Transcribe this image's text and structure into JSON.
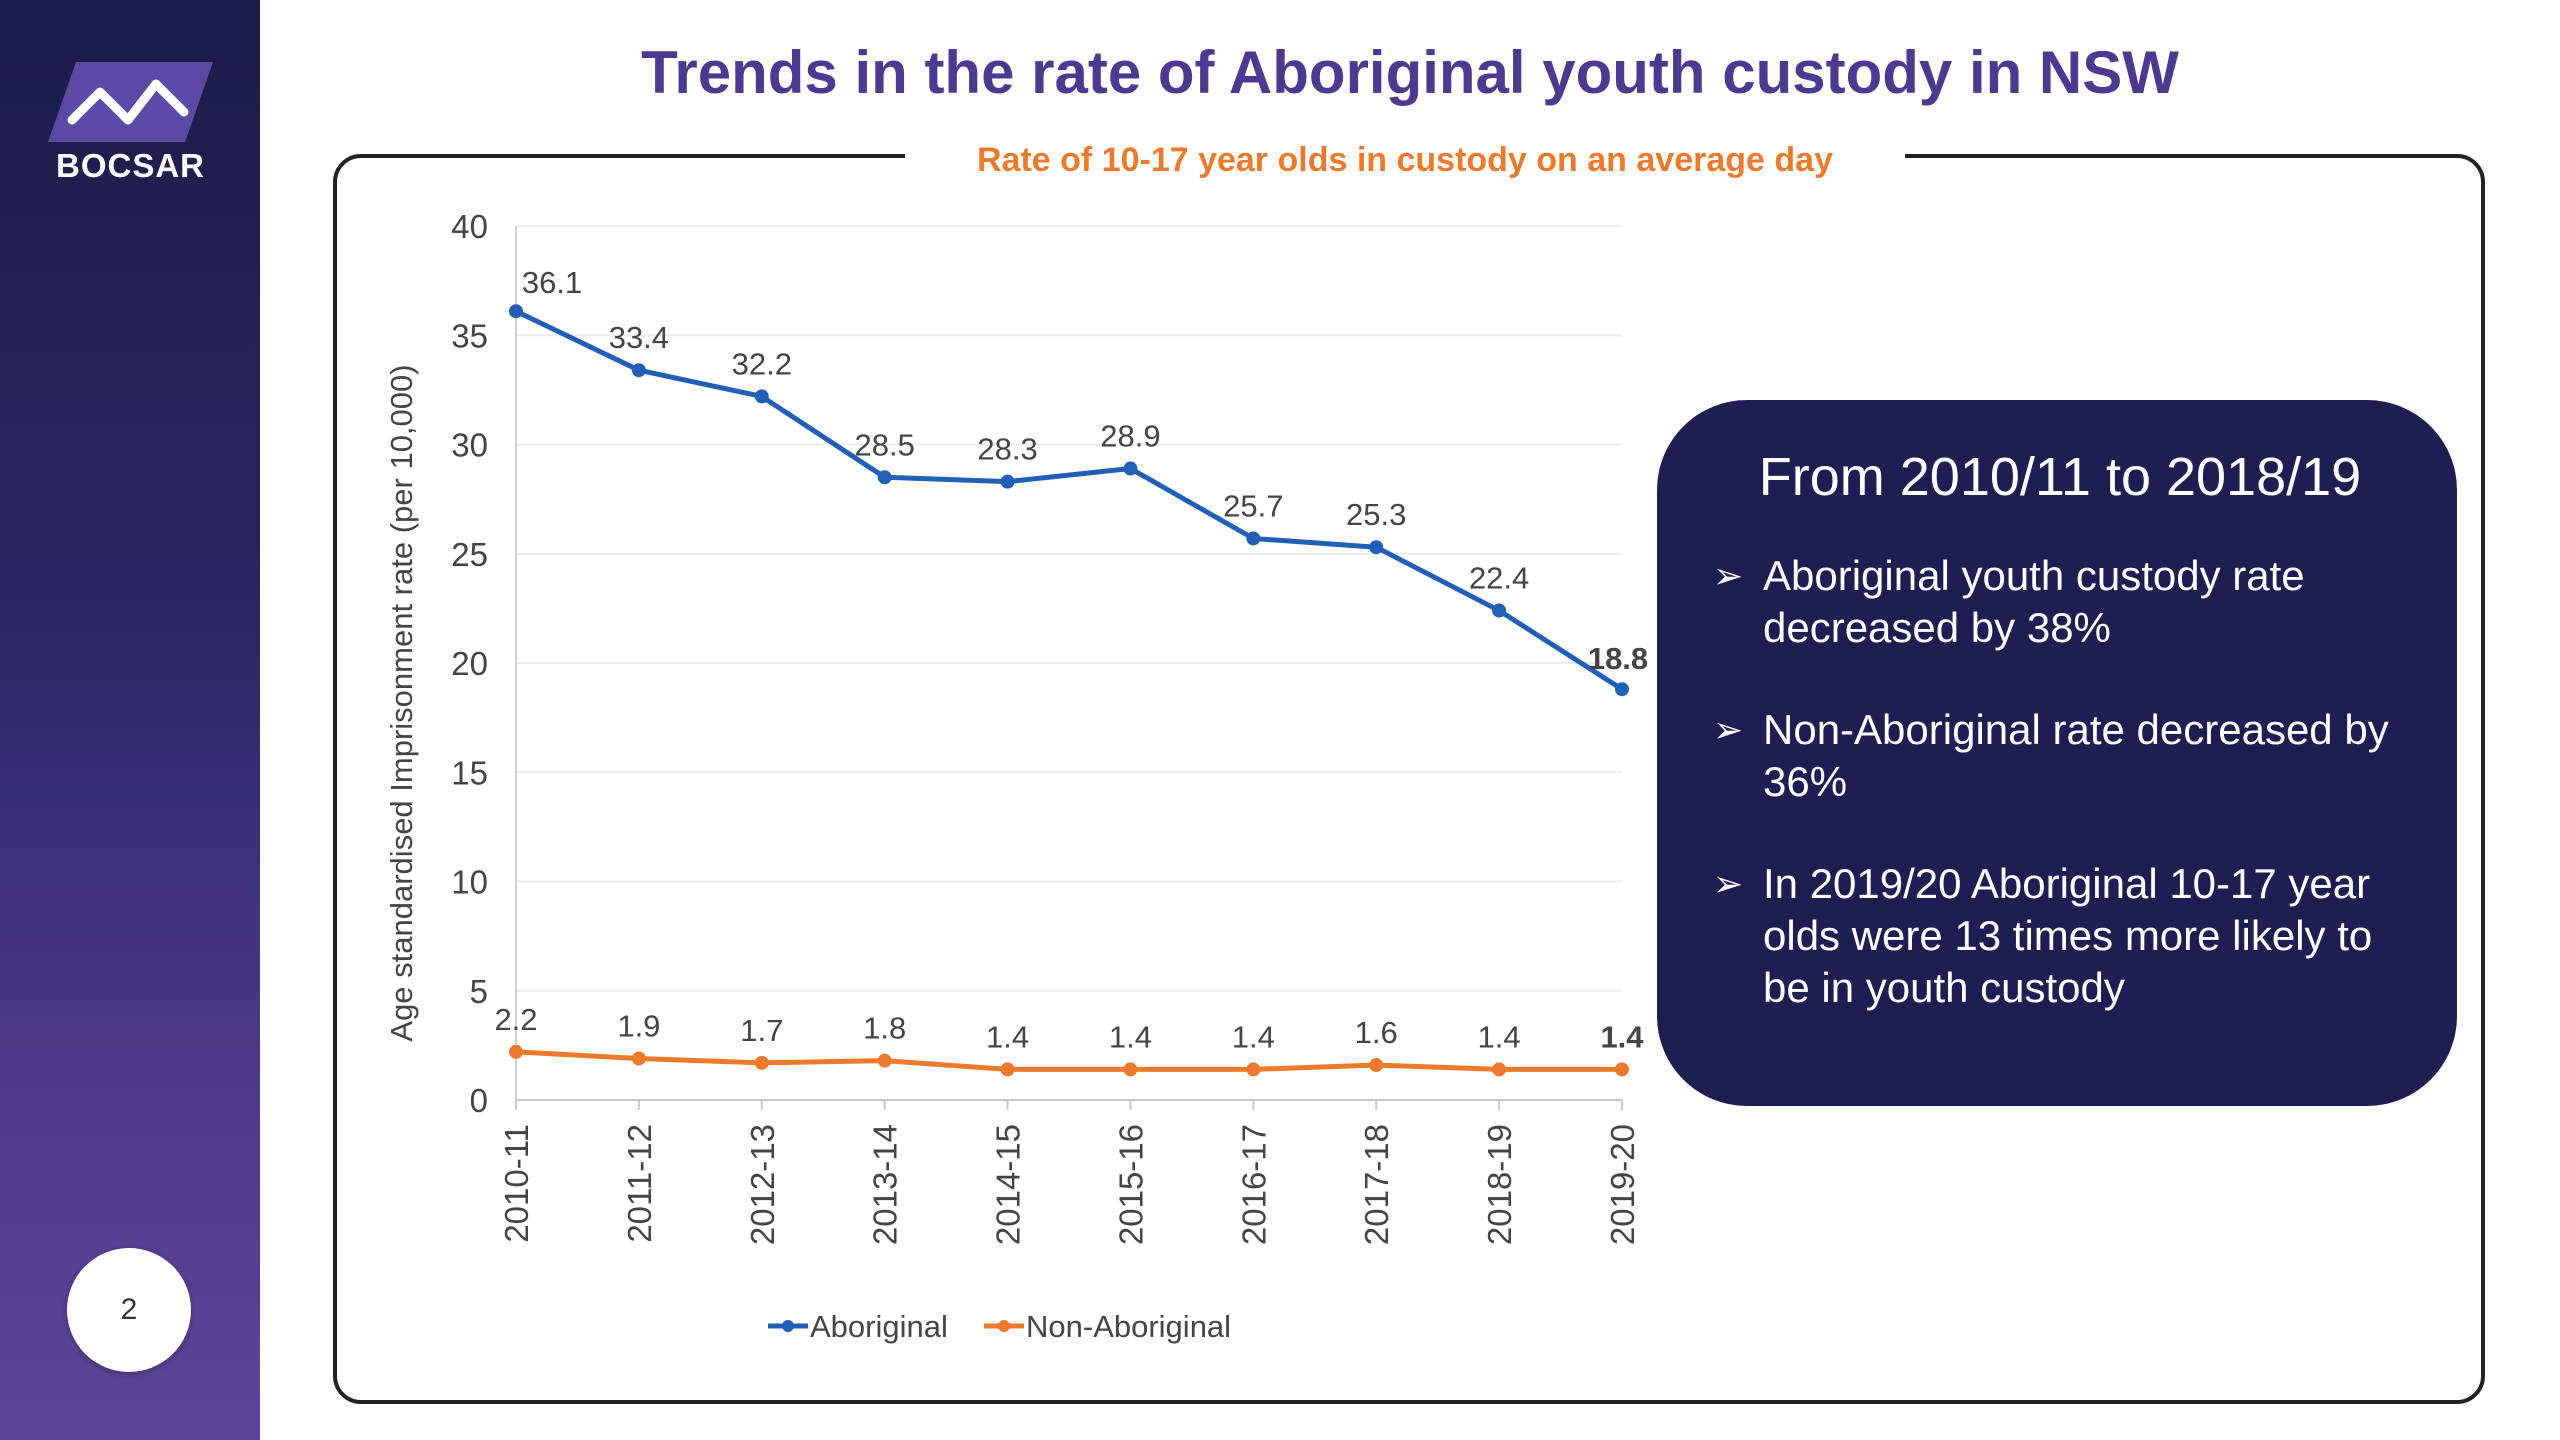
{
  "brand": {
    "logo_text": "BOCSAR"
  },
  "slide": {
    "title": "Trends in the rate of Aboriginal youth custody in NSW",
    "page_number": "2"
  },
  "colors": {
    "title": "#4b3a8f",
    "subtitle": "#ee7b2d",
    "aboriginal": "#2160b6",
    "non_aboriginal": "#ee7b2d",
    "info_box": "#1f1e52"
  },
  "info_box": {
    "heading": "From 2010/11 to 2018/19",
    "bullets": [
      "Aboriginal youth custody rate decreased by 38%",
      "Non-Aboriginal rate decreased by 36%",
      "In 2019/20 Aboriginal 10-17 year olds were 13 times more likely to be in youth custody"
    ],
    "bullet_icon": "arrow-bullet-icon"
  },
  "chart_data": {
    "type": "line",
    "title": "Rate of 10-17 year olds in custody on an average day",
    "ylabel": "Age standardised Imprisonment rate  (per 10,000)",
    "xlabel": "",
    "ylim": [
      0,
      40
    ],
    "yticks": [
      0,
      5,
      10,
      15,
      20,
      25,
      30,
      35,
      40
    ],
    "grid": true,
    "legend_position": "bottom",
    "categories": [
      "2010-11",
      "2011-12",
      "2012-13",
      "2013-14",
      "2014-15",
      "2015-16",
      "2016-17",
      "2017-18",
      "2018-19",
      "2019-20"
    ],
    "series": [
      {
        "name": "Aboriginal",
        "values": [
          36.1,
          33.4,
          32.2,
          28.5,
          28.3,
          28.9,
          25.7,
          25.3,
          22.4,
          18.8
        ],
        "color": "#2160b6"
      },
      {
        "name": "Non-Aboriginal",
        "values": [
          2.2,
          1.9,
          1.7,
          1.8,
          1.4,
          1.4,
          1.4,
          1.6,
          1.4,
          1.4
        ],
        "color": "#ee7b2d"
      }
    ]
  }
}
